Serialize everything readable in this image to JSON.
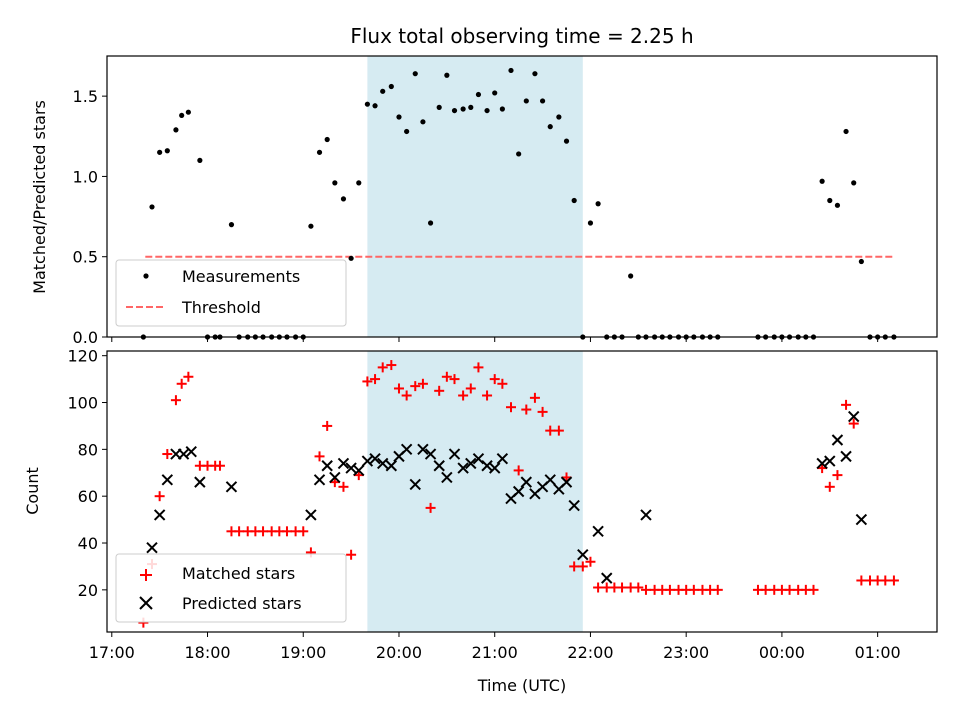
{
  "chart_data": [
    {
      "type": "scatter",
      "panel": "top",
      "title": "Flux total observing time = 2.25 h",
      "xlabel": "",
      "ylabel": "Matched/Predicted stars",
      "xlim": [
        16.95,
        25.62
      ],
      "ylim": [
        0,
        1.75
      ],
      "yticks": [
        0,
        0.5,
        1.0,
        1.5
      ],
      "ytick_labels": [
        "0.0",
        "0.5",
        "1.0",
        "1.5"
      ],
      "shaded_region": {
        "x_start": 19.67,
        "x_end": 21.92,
        "color": "#add8e6"
      },
      "threshold": {
        "name": "Threshold",
        "y": 0.5,
        "x_start": 17.35,
        "x_end": 25.17,
        "color": "#ff6666"
      },
      "legend": {
        "location": "lower left",
        "entries": [
          "Measurements",
          "Threshold"
        ]
      },
      "series": [
        {
          "name": "Measurements",
          "color": "#000000",
          "marker": "dot",
          "x": [
            17.33,
            17.42,
            17.5,
            17.58,
            17.67,
            17.73,
            17.8,
            17.92,
            18.0,
            18.08,
            18.13,
            18.25,
            18.33,
            18.42,
            18.5,
            18.58,
            18.67,
            18.75,
            18.83,
            18.92,
            19.0,
            19.08,
            19.17,
            19.25,
            19.33,
            19.42,
            19.5,
            19.58,
            19.67,
            19.75,
            19.83,
            19.92,
            20.0,
            20.08,
            20.17,
            20.25,
            20.33,
            20.42,
            20.5,
            20.58,
            20.67,
            20.75,
            20.83,
            20.92,
            21.0,
            21.08,
            21.17,
            21.25,
            21.33,
            21.42,
            21.5,
            21.58,
            21.67,
            21.75,
            21.83,
            21.92,
            22.0,
            22.08,
            22.17,
            22.25,
            22.33,
            22.42,
            22.5,
            22.58,
            22.67,
            22.75,
            22.83,
            22.92,
            23.0,
            23.08,
            23.17,
            23.25,
            23.33,
            23.75,
            23.83,
            23.92,
            24.0,
            24.08,
            24.17,
            24.25,
            24.33,
            24.42,
            24.5,
            24.58,
            24.67,
            24.75,
            24.83,
            24.92,
            25.0,
            25.08,
            25.17
          ],
          "y": [
            0.0,
            0.81,
            1.15,
            1.16,
            1.29,
            1.38,
            1.4,
            1.1,
            0.0,
            0.0,
            0.0,
            0.7,
            0.0,
            0.0,
            0.0,
            0.0,
            0.0,
            0.0,
            0.0,
            0.0,
            0.0,
            0.69,
            1.15,
            1.23,
            0.96,
            0.86,
            0.49,
            0.96,
            1.45,
            1.44,
            1.53,
            1.56,
            1.37,
            1.28,
            1.64,
            1.34,
            0.71,
            1.43,
            1.63,
            1.41,
            1.42,
            1.43,
            1.51,
            1.41,
            1.52,
            1.42,
            1.66,
            1.14,
            1.47,
            1.64,
            1.47,
            1.31,
            1.37,
            1.22,
            0.85,
            0.0,
            0.71,
            0.83,
            0.0,
            0.0,
            0.0,
            0.38,
            0.0,
            0.0,
            0.0,
            0.0,
            0.0,
            0.0,
            0.0,
            0.0,
            0.0,
            0.0,
            0.0,
            0.0,
            0.0,
            0.0,
            0.0,
            0.0,
            0.0,
            0.0,
            0.0,
            0.97,
            0.85,
            0.82,
            1.28,
            0.96,
            0.47,
            0.0,
            0.0,
            0.0,
            0.0
          ]
        }
      ]
    },
    {
      "type": "scatter",
      "panel": "bottom",
      "title": "",
      "xlabel": "Time (UTC)",
      "ylabel": "Count",
      "xlim": [
        16.95,
        25.62
      ],
      "ylim": [
        2,
        122
      ],
      "xticks": [
        17,
        18,
        19,
        20,
        21,
        22,
        23,
        24,
        25
      ],
      "xtick_labels": [
        "17:00",
        "18:00",
        "19:00",
        "20:00",
        "21:00",
        "22:00",
        "23:00",
        "00:00",
        "01:00"
      ],
      "yticks": [
        20,
        40,
        60,
        80,
        100,
        120
      ],
      "ytick_labels": [
        "20",
        "40",
        "60",
        "80",
        "100",
        "120"
      ],
      "shaded_region": {
        "x_start": 19.67,
        "x_end": 21.92,
        "color": "#add8e6"
      },
      "legend": {
        "location": "lower left",
        "entries": [
          "Matched stars",
          "Predicted stars"
        ]
      },
      "series": [
        {
          "name": "Matched stars",
          "color": "#ff0000",
          "marker": "plus",
          "x": [
            17.33,
            17.42,
            17.5,
            17.58,
            17.67,
            17.73,
            17.8,
            17.92,
            18.0,
            18.08,
            18.13,
            18.25,
            18.33,
            18.42,
            18.5,
            18.58,
            18.67,
            18.75,
            18.83,
            18.92,
            19.0,
            19.08,
            19.17,
            19.25,
            19.33,
            19.42,
            19.5,
            19.58,
            19.67,
            19.75,
            19.83,
            19.92,
            20.0,
            20.08,
            20.17,
            20.25,
            20.33,
            20.42,
            20.5,
            20.58,
            20.67,
            20.75,
            20.83,
            20.92,
            21.0,
            21.08,
            21.17,
            21.25,
            21.33,
            21.42,
            21.5,
            21.58,
            21.67,
            21.75,
            21.83,
            21.92,
            22.0,
            22.08,
            22.17,
            22.25,
            22.33,
            22.42,
            22.5,
            22.58,
            22.67,
            22.75,
            22.83,
            22.92,
            23.0,
            23.08,
            23.17,
            23.25,
            23.33,
            23.75,
            23.83,
            23.92,
            24.0,
            24.08,
            24.17,
            24.25,
            24.33,
            24.42,
            24.5,
            24.58,
            24.67,
            24.75,
            24.83,
            24.92,
            25.0,
            25.08,
            25.17
          ],
          "y": [
            6,
            31,
            60,
            78,
            101,
            108,
            111,
            73,
            73,
            73,
            73,
            45,
            45,
            45,
            45,
            45,
            45,
            45,
            45,
            45,
            45,
            36,
            77,
            90,
            66,
            64,
            35,
            69,
            109,
            110,
            115,
            116,
            106,
            103,
            107,
            108,
            55,
            105,
            111,
            110,
            103,
            106,
            115,
            103,
            110,
            108,
            98,
            71,
            97,
            102,
            96,
            88,
            88,
            68,
            30,
            30,
            32,
            21,
            21,
            21,
            21,
            21,
            21,
            20,
            20,
            20,
            20,
            20,
            20,
            20,
            20,
            20,
            20,
            20,
            20,
            20,
            20,
            20,
            20,
            20,
            20,
            72,
            64,
            69,
            99,
            91,
            24,
            24,
            24,
            24,
            24
          ]
        },
        {
          "name": "Predicted stars",
          "color": "#000000",
          "marker": "x",
          "x": [
            17.42,
            17.5,
            17.58,
            17.67,
            17.75,
            17.83,
            17.92,
            18.25,
            19.08,
            19.17,
            19.25,
            19.33,
            19.42,
            19.5,
            19.58,
            19.67,
            19.75,
            19.83,
            19.92,
            20.0,
            20.08,
            20.17,
            20.25,
            20.33,
            20.42,
            20.5,
            20.58,
            20.67,
            20.75,
            20.83,
            20.92,
            21.0,
            21.08,
            21.17,
            21.25,
            21.33,
            21.42,
            21.5,
            21.58,
            21.67,
            21.75,
            21.83,
            21.92,
            22.08,
            22.17,
            22.58,
            24.42,
            24.5,
            24.58,
            24.67,
            24.75,
            24.83
          ],
          "y": [
            38,
            52,
            67,
            78,
            78,
            79,
            66,
            64,
            52,
            67,
            73,
            68,
            74,
            72,
            71,
            75,
            76,
            74,
            73,
            77,
            80,
            65,
            80,
            78,
            73,
            68,
            78,
            72,
            74,
            76,
            73,
            72,
            76,
            59,
            62,
            66,
            61,
            64,
            67,
            63,
            66,
            56,
            35,
            45,
            25,
            52,
            74,
            75,
            84,
            77,
            94,
            50
          ]
        }
      ]
    }
  ]
}
